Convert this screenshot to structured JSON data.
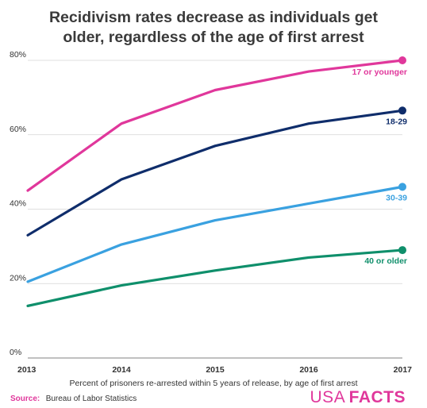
{
  "chart_data": {
    "type": "line",
    "title_lines": [
      "Recidivism rates decrease as individuals get",
      "older, regardless of the age of first arrest"
    ],
    "xlabel": "Percent of prisoners re-arrested within 5 years of release, by age of first arrest",
    "x": [
      "2013",
      "2014",
      "2015",
      "2016",
      "2017"
    ],
    "ylim": [
      0,
      80
    ],
    "yticks": [
      0,
      20,
      40,
      60,
      80
    ],
    "ytick_labels": [
      "0%",
      "20%",
      "40%",
      "60%",
      "80%"
    ],
    "grid": true,
    "series": [
      {
        "name": "17 or younger",
        "color": "#e0379b",
        "values": [
          45,
          63,
          72,
          77,
          80
        ]
      },
      {
        "name": "18-29",
        "color": "#0f2d6b",
        "values": [
          33,
          48,
          57,
          63,
          66.5
        ]
      },
      {
        "name": "30-39",
        "color": "#3aa1e0",
        "values": [
          20.5,
          30.5,
          37,
          41.5,
          46
        ]
      },
      {
        "name": "40 or older",
        "color": "#0f8f6b",
        "values": [
          14,
          19.5,
          23.5,
          27,
          29
        ]
      }
    ]
  },
  "source": {
    "label": "Source:",
    "value": "Bureau of Labor Statistics",
    "color": "#e0379b"
  },
  "logo": {
    "text_light": "USA",
    "text_bold": "FACTS",
    "color": "#e0379b"
  }
}
